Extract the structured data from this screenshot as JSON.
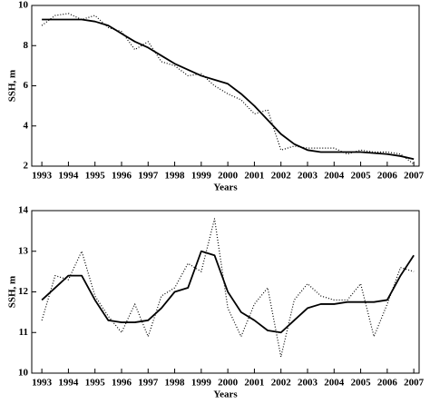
{
  "chart_data": [
    {
      "type": "line",
      "xlabel": "Years",
      "ylabel": "SSH, m",
      "x": [
        1993,
        1993.5,
        1994,
        1994.5,
        1995,
        1995.5,
        1996,
        1996.5,
        1997,
        1997.5,
        1998,
        1998.5,
        1999,
        1999.5,
        2000,
        2000.5,
        2001,
        2001.5,
        2002,
        2002.5,
        2003,
        2003.5,
        2004,
        2004.5,
        2005,
        2005.5,
        2006,
        2006.5,
        2007
      ],
      "series": [
        {
          "color": "#000000",
          "style": "solid",
          "values": [
            9.3,
            9.3,
            9.3,
            9.3,
            9.2,
            9.0,
            8.6,
            8.2,
            7.9,
            7.5,
            7.1,
            6.8,
            6.5,
            6.3,
            6.1,
            5.6,
            5.0,
            4.3,
            3.6,
            3.1,
            2.8,
            2.7,
            2.7,
            2.7,
            2.7,
            2.65,
            2.6,
            2.5,
            2.35
          ]
        },
        {
          "color": "#000000",
          "style": "dotted",
          "values": [
            9.0,
            9.5,
            9.6,
            9.3,
            9.5,
            8.9,
            8.7,
            7.8,
            8.2,
            7.2,
            7.0,
            6.5,
            6.6,
            6.0,
            5.6,
            5.3,
            4.6,
            4.8,
            2.8,
            3.0,
            2.9,
            2.9,
            2.9,
            2.6,
            2.8,
            2.7,
            2.7,
            2.6,
            2.1
          ]
        }
      ],
      "xlim": [
        1992.62,
        2007.2
      ],
      "ylim": [
        2,
        10
      ],
      "xticks": [
        1993,
        1994,
        1995,
        1996,
        1997,
        1998,
        1999,
        2000,
        2001,
        2002,
        2003,
        2004,
        2005,
        2006,
        2007
      ],
      "yticks": [
        2,
        4,
        6,
        8,
        10
      ]
    },
    {
      "type": "line",
      "xlabel": "Years",
      "ylabel": "SSH, m",
      "x": [
        1993,
        1993.5,
        1994,
        1994.5,
        1995,
        1995.5,
        1996,
        1996.5,
        1997,
        1997.5,
        1998,
        1998.5,
        1999,
        1999.5,
        2000,
        2000.5,
        2001,
        2001.5,
        2002,
        2002.5,
        2003,
        2003.5,
        2004,
        2004.5,
        2005,
        2005.5,
        2006,
        2006.5,
        2007
      ],
      "series": [
        {
          "color": "#000000",
          "style": "solid",
          "values": [
            11.8,
            12.1,
            12.4,
            12.4,
            11.8,
            11.3,
            11.25,
            11.25,
            11.3,
            11.6,
            12.0,
            12.1,
            13.0,
            12.9,
            12.0,
            11.5,
            11.3,
            11.05,
            11.0,
            11.3,
            11.6,
            11.7,
            11.7,
            11.75,
            11.75,
            11.75,
            11.8,
            12.4,
            12.9
          ]
        },
        {
          "color": "#000000",
          "style": "dotted",
          "values": [
            11.3,
            12.4,
            12.3,
            13.0,
            11.9,
            11.4,
            11.0,
            11.7,
            10.9,
            11.9,
            12.1,
            12.7,
            12.5,
            13.8,
            11.6,
            10.9,
            11.7,
            12.1,
            10.4,
            11.8,
            12.2,
            11.9,
            11.8,
            11.8,
            12.2,
            10.9,
            11.7,
            12.6,
            12.5
          ]
        }
      ],
      "xlim": [
        1992.62,
        2007.2
      ],
      "ylim": [
        10,
        14
      ],
      "xticks": [
        1993,
        1994,
        1995,
        1996,
        1997,
        1998,
        1999,
        2000,
        2001,
        2002,
        2003,
        2004,
        2005,
        2006,
        2007
      ],
      "yticks": [
        10,
        11,
        12,
        13,
        14
      ]
    }
  ]
}
